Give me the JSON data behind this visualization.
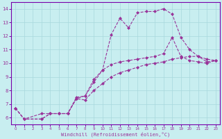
{
  "xlabel": "Windchill (Refroidissement éolien,°C)",
  "background_color": "#c8eef0",
  "grid_color": "#a8d8dc",
  "line_color": "#993399",
  "spine_color": "#7700aa",
  "xlim": [
    -0.5,
    23.5
  ],
  "ylim": [
    5.5,
    14.5
  ],
  "xticks": [
    0,
    1,
    2,
    3,
    4,
    5,
    6,
    7,
    8,
    9,
    10,
    11,
    12,
    13,
    14,
    15,
    16,
    17,
    18,
    19,
    20,
    21,
    22,
    23
  ],
  "yticks": [
    6,
    7,
    8,
    9,
    10,
    11,
    12,
    13,
    14
  ],
  "line1_x": [
    0,
    1,
    3,
    4,
    5,
    6,
    7,
    8,
    9,
    10,
    11,
    12,
    13,
    14,
    15,
    16,
    17,
    18,
    19,
    20,
    21,
    22,
    23
  ],
  "line1_y": [
    6.7,
    5.9,
    6.3,
    6.3,
    6.3,
    6.3,
    7.4,
    7.6,
    8.6,
    9.5,
    12.1,
    13.3,
    12.6,
    13.7,
    13.8,
    13.8,
    14.0,
    13.6,
    11.9,
    11.0,
    10.5,
    10.3,
    10.2
  ],
  "line2_x": [
    0,
    1,
    3,
    4,
    5,
    6,
    7,
    8,
    9,
    10,
    11,
    12,
    13,
    14,
    15,
    16,
    17,
    18,
    19,
    20,
    21,
    22,
    23
  ],
  "line2_y": [
    6.7,
    5.9,
    5.9,
    6.3,
    6.3,
    6.3,
    7.5,
    7.6,
    8.8,
    9.5,
    9.9,
    10.1,
    10.2,
    10.3,
    10.4,
    10.5,
    10.7,
    11.9,
    10.5,
    10.2,
    10.1,
    10.0,
    10.2
  ],
  "line3_x": [
    0,
    1,
    3,
    4,
    5,
    6,
    7,
    8,
    9,
    10,
    11,
    12,
    13,
    14,
    15,
    16,
    17,
    18,
    19,
    20,
    21,
    22,
    23
  ],
  "line3_y": [
    6.7,
    5.9,
    5.9,
    6.3,
    6.3,
    6.3,
    7.4,
    7.3,
    8.0,
    8.5,
    9.0,
    9.3,
    9.5,
    9.7,
    9.9,
    10.0,
    10.1,
    10.3,
    10.4,
    10.5,
    10.5,
    10.1,
    10.2
  ]
}
